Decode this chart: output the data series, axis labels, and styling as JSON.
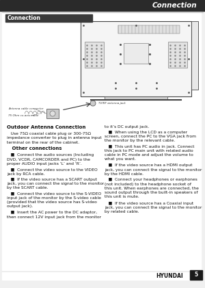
{
  "page_title": "Connection",
  "section_title": "Connection",
  "header_bg": "#2a2a2a",
  "header_text_color": "#ffffff",
  "section_title_bg": "#3a3a3a",
  "section_title_text_color": "#ffffff",
  "footer_text": "HYUNDAI",
  "page_number": "5",
  "bg_color": "#f0f0f0",
  "content_bg": "#ffffff",
  "diagram_label1": "Antenna cable connector",
  "diagram_label2": "75 Ohm co-axis cable",
  "diagram_label3": "TV/RF antenna jack",
  "left_col_texts": [
    {
      "text": "Outdoor Antenna Connection",
      "bold": true,
      "size": 5.0
    },
    {
      "text": "   Use 75Ω coaxial cable plug or 300-75Ω\nimpedance converter to plug in antenna input\nterminal on the rear of the cabinet.",
      "bold": false,
      "size": 4.3
    },
    {
      "text": "   Other connections",
      "bold": true,
      "size": 5.0
    },
    {
      "text": "   ■  Connect the audio sources (Including\nDVD, VCDR, CAMCORDER and PC) to the\nproper AUDIO input jacks ‘L’ and ‘R’.",
      "bold": false,
      "size": 4.3
    },
    {
      "text": "   ■  Connect the video source to the VIDEO\njack by RCA cable.",
      "bold": false,
      "size": 4.3
    },
    {
      "text": "   ■  If the video source has a SCART output\njack, you can connect the signal to the monitor\nby the SCART cable.",
      "bold": false,
      "size": 4.3
    },
    {
      "text": "   ■  Connect the video source to the S-VIDEO\ninput jack of the monitor by the S-video cable\n(provided that the video source has S-video\noutput jack).",
      "bold": false,
      "size": 4.3
    },
    {
      "text": "   ■  Insert the AC power to the DC adaptor,\nthen connect 12V input jack from the monitor",
      "bold": false,
      "size": 4.3
    }
  ],
  "right_col_texts": [
    {
      "text": "to it’s DC output jack.",
      "bold": false,
      "size": 4.3
    },
    {
      "text": "   ■  When using the LCD as a computer\nscreen, connect the PC to the VGA jack from\nthe monitor by the relevant cable.",
      "bold": false,
      "size": 4.3
    },
    {
      "text": "   ■  This unit has PC audio in jack. Connect\nthis jack to PC main unit with related audio\ncable in PC mode and adjust the volume to\nwhat you want.",
      "bold": false,
      "size": 4.3
    },
    {
      "text": "   ■  If the video source has a HDMI output\njack, you can connect the signal to the monitor\nby the HDMI cable.",
      "bold": false,
      "size": 4.3
    },
    {
      "text": "   ■  Connect your headphones or earphones\n(not included) to the headphone socket of\nthis unit. When earphones are connected, the\nsound output through the built-in speakers of\nthis unit is mute.",
      "bold": false,
      "size": 4.3
    },
    {
      "text": "   ■  If the video source has a Coaxial input\njack, you can connect the signal to the monitor\nby related cable.",
      "bold": false,
      "size": 4.3
    }
  ]
}
